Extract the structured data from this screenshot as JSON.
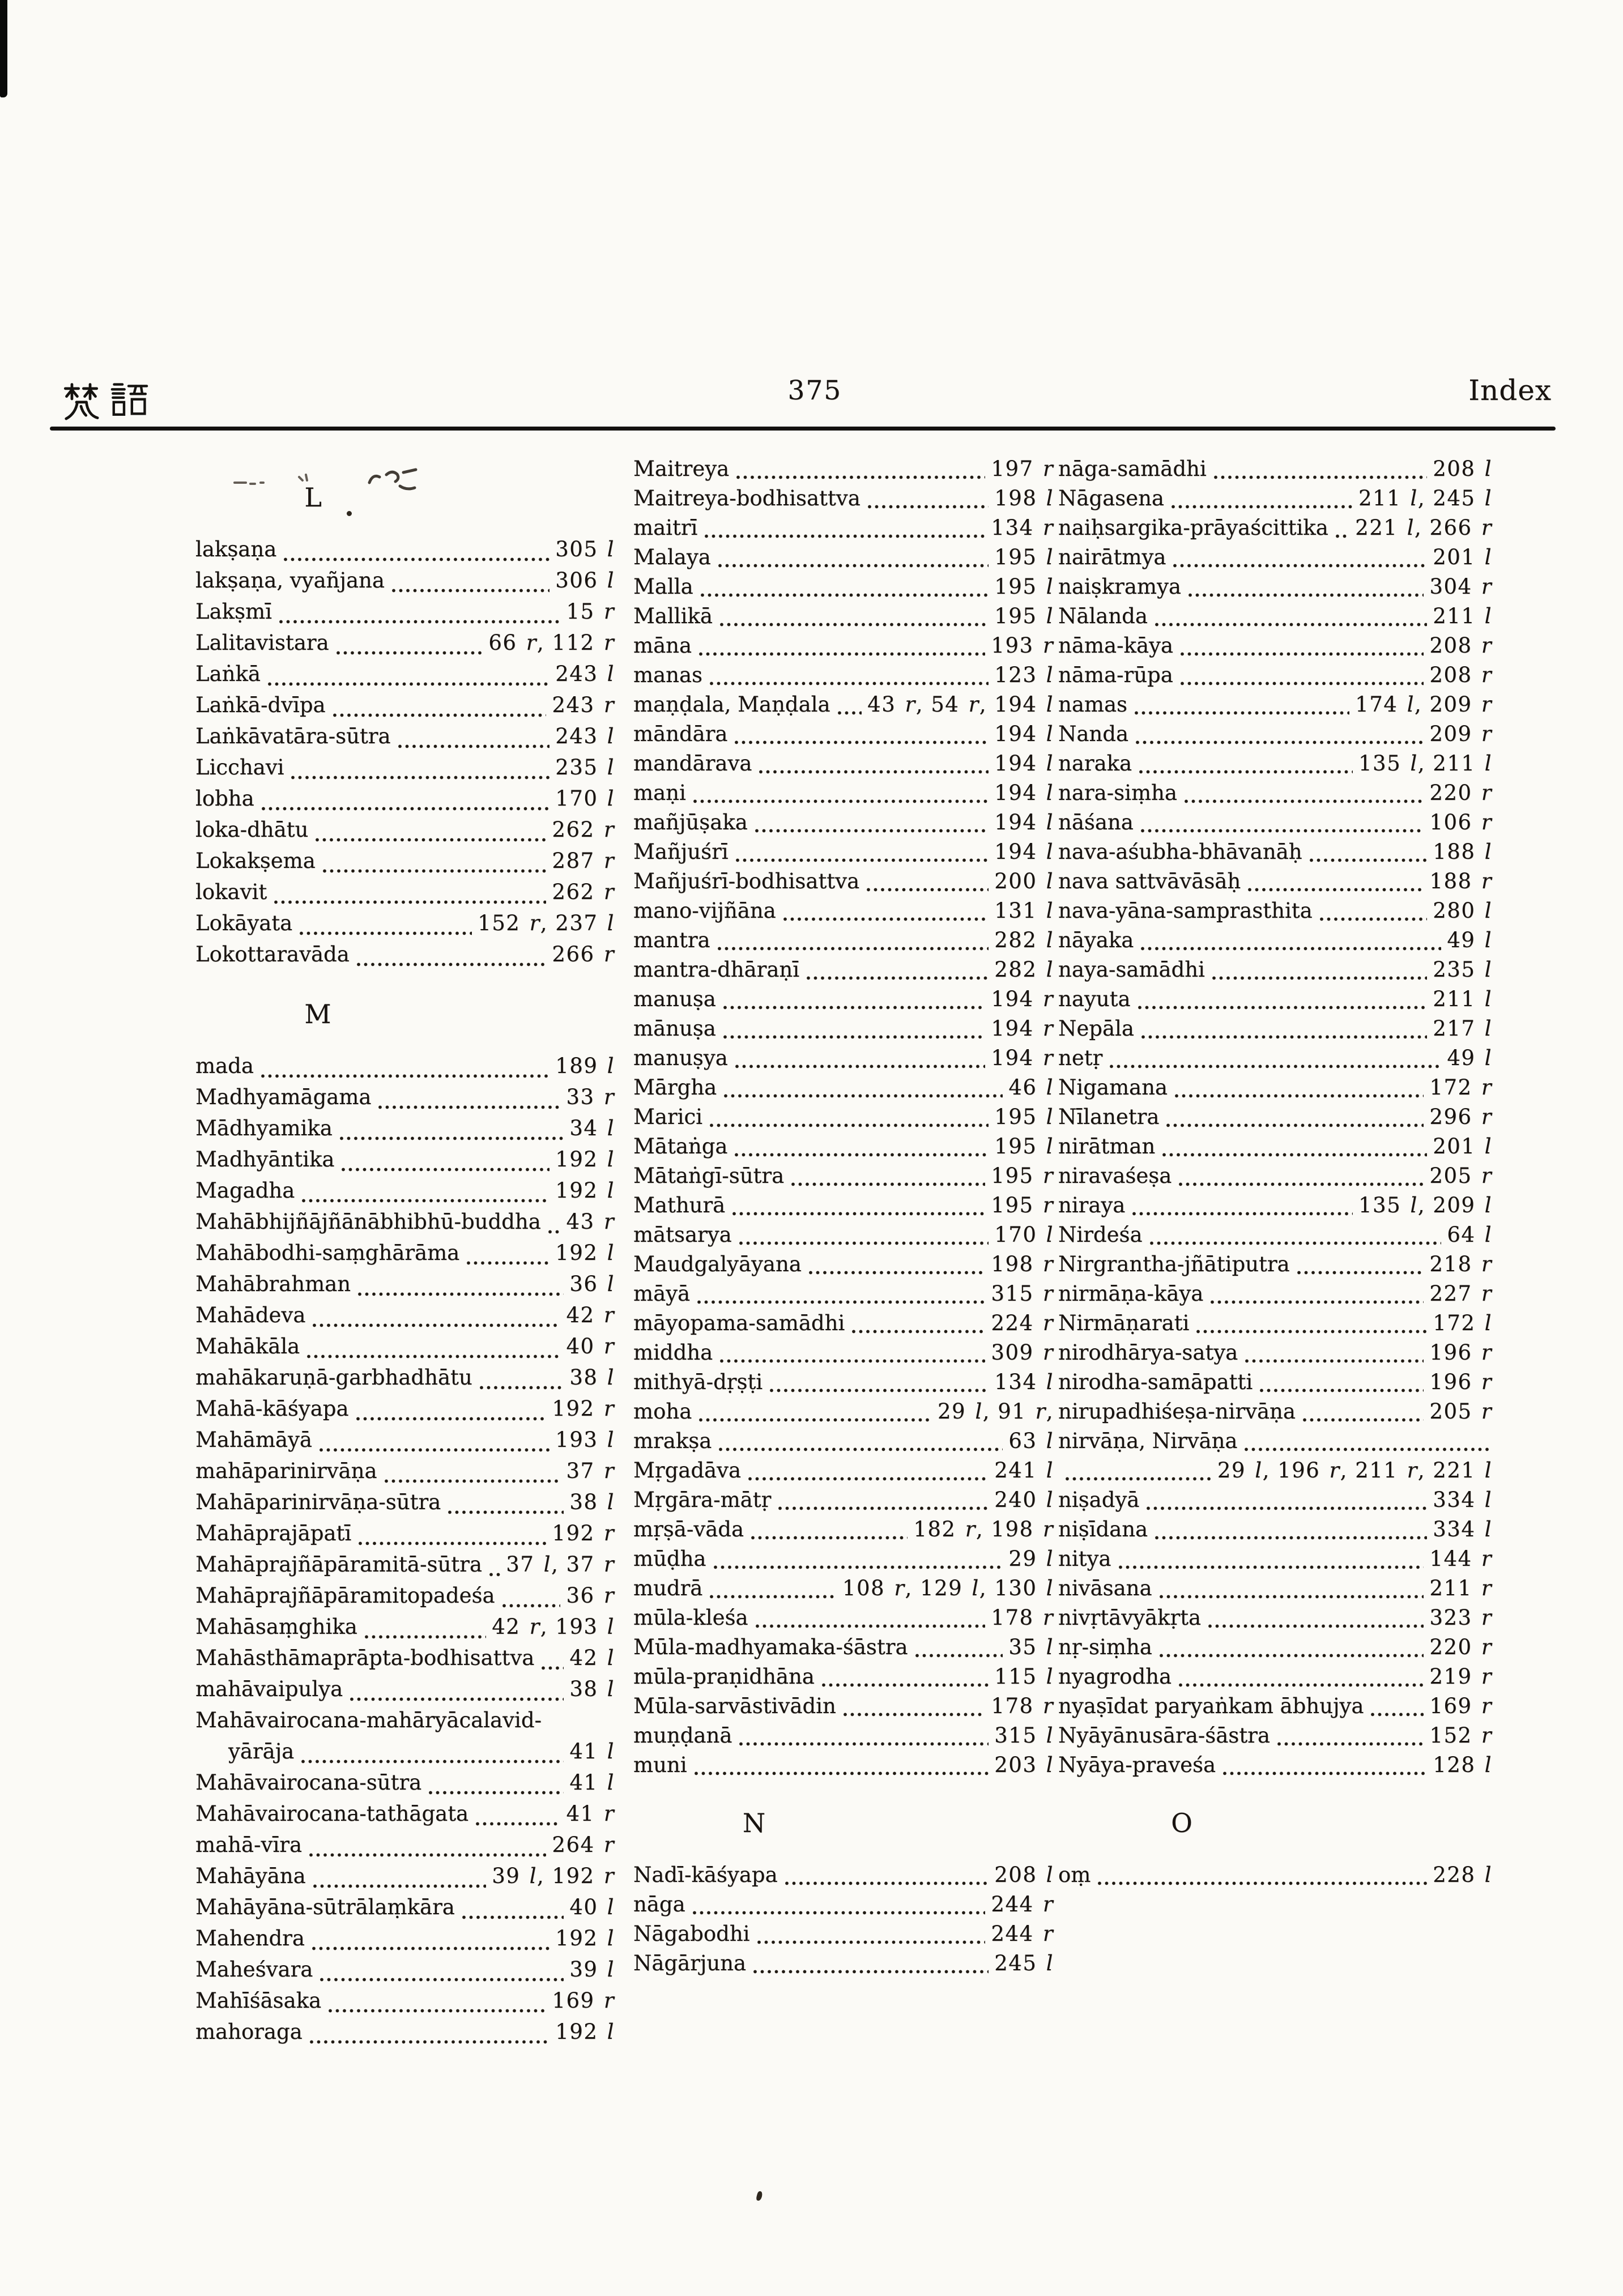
{
  "header": {
    "cjk": "梵語",
    "page_number": "375",
    "title": "Index"
  },
  "columns": [
    {
      "rows": [
        {
          "t": "s",
          "label": "L"
        },
        {
          "t": "e",
          "term": "lakṣaṇa",
          "pages": "305 l"
        },
        {
          "t": "e",
          "term": "lakṣaṇa, vyañjana",
          "pages": "306 l"
        },
        {
          "t": "e",
          "term": "Lakṣmī",
          "pages": "15 r"
        },
        {
          "t": "e",
          "term": "Lalitavistara",
          "pages": "66 r, 112 r"
        },
        {
          "t": "e",
          "term": "Laṅkā",
          "pages": "243 l"
        },
        {
          "t": "e",
          "term": "Laṅkā-dvīpa",
          "pages": "243 r"
        },
        {
          "t": "e",
          "term": "Laṅkāvatāra-sūtra",
          "pages": "243 l"
        },
        {
          "t": "e",
          "term": "Licchavi",
          "pages": "235 l"
        },
        {
          "t": "e",
          "term": "lobha",
          "pages": "170 l"
        },
        {
          "t": "e",
          "term": "loka-dhātu",
          "pages": "262 r"
        },
        {
          "t": "e",
          "term": "Lokakṣema",
          "pages": "287 r"
        },
        {
          "t": "e",
          "term": "lokavit",
          "pages": "262 r"
        },
        {
          "t": "e",
          "term": "Lokāyata",
          "pages": "152 r, 237 l"
        },
        {
          "t": "e",
          "term": "Lokottaravāda",
          "pages": "266 r"
        },
        {
          "t": "s",
          "label": "M"
        },
        {
          "t": "e",
          "term": "mada",
          "pages": "189 l"
        },
        {
          "t": "e",
          "term": "Madhyamāgama",
          "pages": "33 r"
        },
        {
          "t": "e",
          "term": "Mādhyamika",
          "pages": "34 l"
        },
        {
          "t": "e",
          "term": "Madhyāntika",
          "pages": "192 l"
        },
        {
          "t": "e",
          "term": "Magadha",
          "pages": "192 l"
        },
        {
          "t": "e",
          "term": "Mahābhijñājñānābhibhū-buddha",
          "pages": "43 r"
        },
        {
          "t": "e",
          "term": "Mahābodhi-saṃghārāma",
          "pages": "192 l"
        },
        {
          "t": "e",
          "term": "Mahābrahman",
          "pages": "36 l"
        },
        {
          "t": "e",
          "term": "Mahādeva",
          "pages": "42 r"
        },
        {
          "t": "e",
          "term": "Mahākāla",
          "pages": "40 r"
        },
        {
          "t": "e",
          "term": "mahākaruṇā-garbhadhātu",
          "pages": "38 l"
        },
        {
          "t": "e",
          "term": "Mahā-kāśyapa",
          "pages": "192 r"
        },
        {
          "t": "e",
          "term": "Mahāmāyā",
          "pages": "193 l"
        },
        {
          "t": "e",
          "term": "mahāparinirvāṇa",
          "pages": "37 r"
        },
        {
          "t": "e",
          "term": "Mahāparinirvāṇa-sūtra",
          "pages": "38 l"
        },
        {
          "t": "e",
          "term": "Mahāprajāpatī",
          "pages": "192 r"
        },
        {
          "t": "e",
          "term": "Mahāprajñāpāramitā-sūtra",
          "pages": "37 l, 37 r"
        },
        {
          "t": "e",
          "term": "Mahāprajñāpāramitopadeśa",
          "pages": "36 r"
        },
        {
          "t": "e",
          "term": "Mahāsaṃghika",
          "pages": "42 r, 193 l"
        },
        {
          "t": "e",
          "term": "Mahāsthāmaprāpta-bodhisattva",
          "pages": "42 l"
        },
        {
          "t": "e",
          "term": "mahāvaipulya",
          "pages": "38 l"
        },
        {
          "t": "head",
          "term": "Mahāvairocana-mahāryācalavid-"
        },
        {
          "t": "tail",
          "term": "yārāja",
          "pages": "41 l"
        },
        {
          "t": "e",
          "term": "Mahāvairocana-sūtra",
          "pages": "41 l"
        },
        {
          "t": "e",
          "term": "Mahāvairocana-tathāgata",
          "pages": "41 r"
        },
        {
          "t": "e",
          "term": "mahā-vīra",
          "pages": "264 r"
        },
        {
          "t": "e",
          "term": "Mahāyāna",
          "pages": "39 l, 192 r"
        },
        {
          "t": "e",
          "term": "Mahāyāna-sūtrālaṃkāra",
          "pages": "40 l"
        },
        {
          "t": "e",
          "term": "Mahendra",
          "pages": "192 l"
        },
        {
          "t": "e",
          "term": "Maheśvara",
          "pages": "39 l"
        },
        {
          "t": "e",
          "term": "Mahīśāsaka",
          "pages": "169 r"
        },
        {
          "t": "e",
          "term": "mahoraga",
          "pages": "192 l"
        }
      ]
    },
    {
      "rows": [
        {
          "t": "e",
          "term": "Maitreya",
          "pages": "197 r"
        },
        {
          "t": "e",
          "term": "Maitreya-bodhisattva",
          "pages": "198 l"
        },
        {
          "t": "e",
          "term": "maitrī",
          "pages": "134 r"
        },
        {
          "t": "e",
          "term": "Malaya",
          "pages": "195 l"
        },
        {
          "t": "e",
          "term": "Malla",
          "pages": "195 l"
        },
        {
          "t": "e",
          "term": "Mallikā",
          "pages": "195 l"
        },
        {
          "t": "e",
          "term": "māna",
          "pages": "193 r"
        },
        {
          "t": "e",
          "term": "manas",
          "pages": "123 l"
        },
        {
          "t": "e",
          "term": "maṇḍala, Maṇḍala",
          "pages": "43 r, 54 r, 194 l"
        },
        {
          "t": "e",
          "term": "māndāra",
          "pages": "194 l"
        },
        {
          "t": "e",
          "term": "mandārava",
          "pages": "194 l"
        },
        {
          "t": "e",
          "term": "maṇi",
          "pages": "194 l"
        },
        {
          "t": "e",
          "term": "mañjūṣaka",
          "pages": "194 l"
        },
        {
          "t": "e",
          "term": "Mañjuśrī",
          "pages": "194 l"
        },
        {
          "t": "e",
          "term": "Mañjuśrī-bodhisattva",
          "pages": "200 l"
        },
        {
          "t": "e",
          "term": "mano-vijñāna",
          "pages": "131 l"
        },
        {
          "t": "e",
          "term": "mantra",
          "pages": "282 l"
        },
        {
          "t": "e",
          "term": "mantra-dhāraṇī",
          "pages": "282 l"
        },
        {
          "t": "e",
          "term": "manuṣa",
          "pages": "194 r"
        },
        {
          "t": "e",
          "term": "mānuṣa",
          "pages": "194 r"
        },
        {
          "t": "e",
          "term": "manuṣya",
          "pages": "194 r"
        },
        {
          "t": "e",
          "term": "Mārgha",
          "pages": "46 l"
        },
        {
          "t": "e",
          "term": "Marici",
          "pages": "195 l"
        },
        {
          "t": "e",
          "term": "Mātaṅga",
          "pages": "195 l"
        },
        {
          "t": "e",
          "term": "Mātaṅgī-sūtra",
          "pages": "195 r"
        },
        {
          "t": "e",
          "term": "Mathurā",
          "pages": "195 r"
        },
        {
          "t": "e",
          "term": "mātsarya",
          "pages": "170 l"
        },
        {
          "t": "e",
          "term": "Maudgalyāyana",
          "pages": "198 r"
        },
        {
          "t": "e",
          "term": "māyā",
          "pages": "315 r"
        },
        {
          "t": "e",
          "term": "māyopama-samādhi",
          "pages": "224 r"
        },
        {
          "t": "e",
          "term": "middha",
          "pages": "309 r"
        },
        {
          "t": "e",
          "term": "mithyā-dṛṣṭi",
          "pages": "134 l"
        },
        {
          "t": "e",
          "term": "moha",
          "pages": "29 l, 91 r,"
        },
        {
          "t": "e",
          "term": "mrakṣa",
          "pages": "63 l"
        },
        {
          "t": "e",
          "term": "Mṛgadāva",
          "pages": "241 l"
        },
        {
          "t": "e",
          "term": "Mṛgāra-mātṛ",
          "pages": "240 l"
        },
        {
          "t": "e",
          "term": "mṛṣā-vāda",
          "pages": "182 r, 198 r"
        },
        {
          "t": "e",
          "term": "mūḍha",
          "pages": "29 l"
        },
        {
          "t": "e",
          "term": "mudrā",
          "pages": "108 r, 129 l, 130 l"
        },
        {
          "t": "e",
          "term": "mūla-kleśa",
          "pages": "178 r"
        },
        {
          "t": "e",
          "term": "Mūla-madhyamaka-śāstra",
          "pages": "35 l"
        },
        {
          "t": "e",
          "term": "mūla-praṇidhāna",
          "pages": "115 l"
        },
        {
          "t": "e",
          "term": "Mūla-sarvāstivādin",
          "pages": "178 r"
        },
        {
          "t": "e",
          "term": "muṇḍanā",
          "pages": "315 l"
        },
        {
          "t": "e",
          "term": "muni",
          "pages": "203 l"
        },
        {
          "t": "s",
          "label": "N"
        },
        {
          "t": "e",
          "term": "Nadī-kāśyapa",
          "pages": "208 l"
        },
        {
          "t": "e",
          "term": "nāga",
          "pages": "244 r"
        },
        {
          "t": "e",
          "term": "Nāgabodhi",
          "pages": "244 r"
        },
        {
          "t": "e",
          "term": "Nāgārjuna",
          "pages": "245 l"
        }
      ]
    },
    {
      "rows": [
        {
          "t": "e",
          "term": "nāga-samādhi",
          "pages": "208 l"
        },
        {
          "t": "e",
          "term": "Nāgasena",
          "pages": "211 l, 245 l"
        },
        {
          "t": "e",
          "term": "naiḥsargika-prāyaścittika",
          "pages": "221 l, 266 r"
        },
        {
          "t": "e",
          "term": "nairātmya",
          "pages": "201 l"
        },
        {
          "t": "e",
          "term": "naiṣkramya",
          "pages": "304 r"
        },
        {
          "t": "e",
          "term": "Nālanda",
          "pages": "211 l"
        },
        {
          "t": "e",
          "term": "nāma-kāya",
          "pages": "208 r"
        },
        {
          "t": "e",
          "term": "nāma-rūpa",
          "pages": "208 r"
        },
        {
          "t": "e",
          "term": "namas",
          "pages": "174 l, 209 r"
        },
        {
          "t": "e",
          "term": "Nanda",
          "pages": "209 r"
        },
        {
          "t": "e",
          "term": "naraka",
          "pages": "135 l, 211 l"
        },
        {
          "t": "e",
          "term": "nara-siṃha",
          "pages": "220 r"
        },
        {
          "t": "e",
          "term": "nāśana",
          "pages": "106 r"
        },
        {
          "t": "e",
          "term": "nava-aśubha-bhāvanāḥ",
          "pages": "188 l"
        },
        {
          "t": "e",
          "term": "nava sattvāvāsāḥ",
          "pages": "188 r"
        },
        {
          "t": "e",
          "term": "nava-yāna-samprasthita",
          "pages": "280 l"
        },
        {
          "t": "e",
          "term": "nāyaka",
          "pages": "49 l"
        },
        {
          "t": "e",
          "term": "naya-samādhi",
          "pages": "235 l"
        },
        {
          "t": "e",
          "term": "nayuta",
          "pages": "211 l"
        },
        {
          "t": "e",
          "term": "Nepāla",
          "pages": "217 l"
        },
        {
          "t": "e",
          "term": "netṛ",
          "pages": "49 l"
        },
        {
          "t": "e",
          "term": "Nigamana",
          "pages": "172 r"
        },
        {
          "t": "e",
          "term": "Nīlanetra",
          "pages": "296 r"
        },
        {
          "t": "e",
          "term": "nirātman",
          "pages": "201 l"
        },
        {
          "t": "e",
          "term": "niravaśeṣa",
          "pages": "205 r"
        },
        {
          "t": "e",
          "term": "niraya",
          "pages": "135 l, 209 l"
        },
        {
          "t": "e",
          "term": "Nirdeśa",
          "pages": "64 l"
        },
        {
          "t": "e",
          "term": "Nirgrantha-jñātiputra",
          "pages": "218 r"
        },
        {
          "t": "e",
          "term": "nirmāṇa-kāya",
          "pages": "227 r"
        },
        {
          "t": "e",
          "term": "Nirmāṇarati",
          "pages": "172 l"
        },
        {
          "t": "e",
          "term": "nirodhārya-satya",
          "pages": "196 r"
        },
        {
          "t": "e",
          "term": "nirodha-samāpatti",
          "pages": "196 r"
        },
        {
          "t": "e",
          "term": "nirupadhiśeṣa-nirvāṇa",
          "pages": "205 r"
        },
        {
          "t": "e",
          "term": "nirvāṇa, Nirvāṇa"
        },
        {
          "t": "e",
          "pages": "29 l, 196 r, 211 r, 221 l"
        },
        {
          "t": "e",
          "term": "niṣadyā",
          "pages": "334 l"
        },
        {
          "t": "e",
          "term": "niṣīdana",
          "pages": "334 l"
        },
        {
          "t": "e",
          "term": "nitya",
          "pages": "144 r"
        },
        {
          "t": "e",
          "term": "nivāsana",
          "pages": "211 r"
        },
        {
          "t": "e",
          "term": "nivṛtāvyākṛta",
          "pages": "323 r"
        },
        {
          "t": "e",
          "term": "nṛ-siṃha",
          "pages": "220 r"
        },
        {
          "t": "e",
          "term": "nyagrodha",
          "pages": "219 r"
        },
        {
          "t": "e",
          "term": "nyaṣīdat paryaṅkam ābhujya",
          "pages": "169 r"
        },
        {
          "t": "e",
          "term": "Nyāyānusāra-śāstra",
          "pages": "152 r"
        },
        {
          "t": "e",
          "term": "Nyāya-praveśa",
          "pages": "128 l"
        },
        {
          "t": "s",
          "label": "O"
        },
        {
          "t": "e",
          "term": "oṃ",
          "pages": "228 l"
        }
      ]
    }
  ]
}
